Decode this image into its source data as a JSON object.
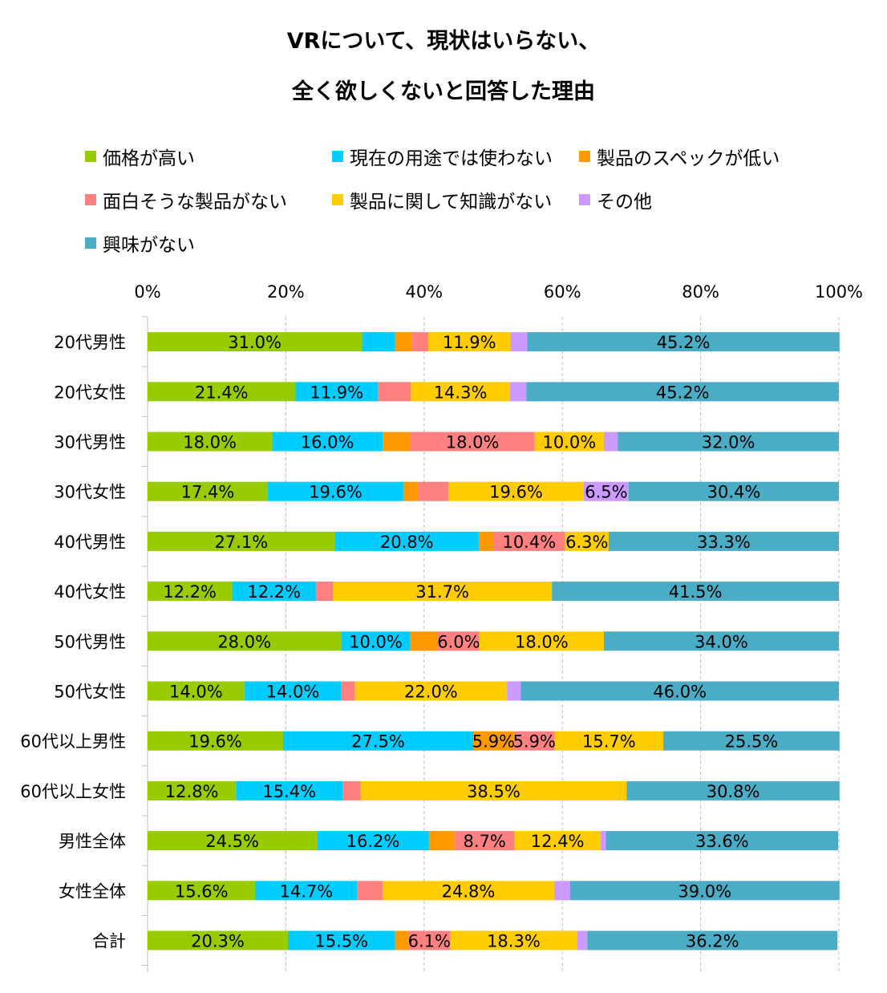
{
  "title_line1": "VRについて、現状はいらない、",
  "title_line2": "全く欲しくないと回答した理由",
  "chart_data": {
    "type": "bar",
    "orientation": "horizontal",
    "stacked": "percent",
    "title": "VRについて、現状はいらない、全く欲しくないと回答した理由",
    "xlim": [
      0,
      100
    ],
    "x_ticks": [
      "0%",
      "20%",
      "40%",
      "60%",
      "80%",
      "100%"
    ],
    "legend_position": "top",
    "grid": true,
    "categories": [
      "20代男性",
      "20代女性",
      "30代男性",
      "30代女性",
      "40代男性",
      "40代女性",
      "50代男性",
      "50代女性",
      "60代以上男性",
      "60代以上女性",
      "男性全体",
      "女性全体",
      "合計"
    ],
    "series": [
      {
        "name": "価格が高い",
        "color": "#99cc00",
        "values": [
          31.0,
          21.4,
          18.0,
          17.4,
          27.1,
          12.2,
          28.0,
          14.0,
          19.6,
          12.8,
          24.5,
          15.6,
          20.3
        ],
        "labels": [
          "31.0%",
          "21.4%",
          "18.0%",
          "17.4%",
          "27.1%",
          "12.2%",
          "28.0%",
          "14.0%",
          "19.6%",
          "12.8%",
          "24.5%",
          "15.6%",
          "20.3%"
        ]
      },
      {
        "name": "現在の用途では使わない",
        "color": "#00ccff",
        "values": [
          4.8,
          11.9,
          16.0,
          19.6,
          20.8,
          12.2,
          10.0,
          14.0,
          27.5,
          15.4,
          16.2,
          14.7,
          15.5
        ],
        "labels": [
          "",
          "11.9%",
          "16.0%",
          "19.6%",
          "20.8%",
          "12.2%",
          "10.0%",
          "14.0%",
          "27.5%",
          "15.4%",
          "16.2%",
          "14.7%",
          "15.5%"
        ]
      },
      {
        "name": "製品のスペックが低い",
        "color": "#ff9900",
        "values": [
          2.4,
          0,
          4.0,
          2.2,
          2.1,
          0,
          4.0,
          0,
          5.9,
          0,
          3.7,
          0,
          1.9
        ],
        "labels": [
          "",
          "",
          "",
          "",
          "",
          "",
          "",
          "",
          "5.9%",
          "",
          "",
          "",
          ""
        ]
      },
      {
        "name": "面白そうな製品がない",
        "color": "#ff8080",
        "values": [
          2.4,
          4.8,
          18.0,
          4.3,
          10.4,
          2.4,
          6.0,
          2.0,
          5.9,
          2.6,
          8.7,
          3.7,
          6.1
        ],
        "labels": [
          "",
          "",
          "18.0%",
          "",
          "10.4%",
          "",
          "6.0%",
          "",
          "5.9%",
          "",
          "8.7%",
          "",
          "6.1%"
        ]
      },
      {
        "name": "製品に関して知識がない",
        "color": "#ffcc00",
        "values": [
          11.9,
          14.3,
          10.0,
          19.6,
          6.3,
          31.7,
          18.0,
          22.0,
          15.7,
          38.5,
          12.4,
          24.8,
          18.3
        ],
        "labels": [
          "11.9%",
          "14.3%",
          "10.0%",
          "19.6%",
          "6.3%",
          "31.7%",
          "18.0%",
          "22.0%",
          "15.7%",
          "38.5%",
          "12.4%",
          "24.8%",
          "18.3%"
        ]
      },
      {
        "name": "その他",
        "color": "#cc99ff",
        "values": [
          2.4,
          2.4,
          2.0,
          6.5,
          0,
          0,
          0,
          2.0,
          0,
          0,
          0.8,
          2.3,
          1.5
        ],
        "labels": [
          "",
          "",
          "",
          "6.5%",
          "",
          "",
          "",
          "",
          "",
          "",
          "",
          "",
          ""
        ]
      },
      {
        "name": "興味がない",
        "color": "#4bacc6",
        "values": [
          45.2,
          45.2,
          32.0,
          30.4,
          33.3,
          41.5,
          34.0,
          46.0,
          25.5,
          30.8,
          33.6,
          39.0,
          36.2
        ],
        "labels": [
          "45.2%",
          "45.2%",
          "32.0%",
          "30.4%",
          "33.3%",
          "41.5%",
          "34.0%",
          "46.0%",
          "25.5%",
          "30.8%",
          "33.6%",
          "39.0%",
          "36.2%"
        ]
      }
    ]
  }
}
